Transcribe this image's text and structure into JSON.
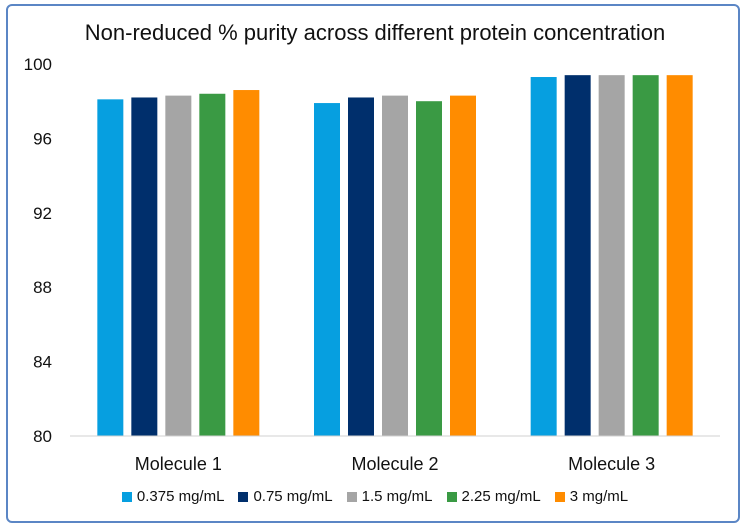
{
  "chart_data": {
    "type": "bar",
    "title": "Non-reduced % purity across different protein concentration",
    "categories": [
      "Molecule 1",
      "Molecule 2",
      "Molecule 3"
    ],
    "series": [
      {
        "name": "0.375 mg/mL",
        "color": "#069fe0",
        "values": [
          98.1,
          97.9,
          99.3
        ]
      },
      {
        "name": "0.75 mg/mL",
        "color": "#002f6c",
        "values": [
          98.2,
          98.2,
          99.4
        ]
      },
      {
        "name": "1.5 mg/mL",
        "color": "#a5a5a5",
        "values": [
          98.3,
          98.3,
          99.4
        ]
      },
      {
        "name": "2.25 mg/mL",
        "color": "#3a9a44",
        "values": [
          98.4,
          98.0,
          99.4
        ]
      },
      {
        "name": "3 mg/mL",
        "color": "#ff8c00",
        "values": [
          98.6,
          98.3,
          99.4
        ]
      }
    ],
    "ylim": [
      80,
      100
    ],
    "yticks": [
      80,
      84,
      88,
      92,
      96,
      100
    ],
    "grid": false,
    "legend": "bottom"
  }
}
